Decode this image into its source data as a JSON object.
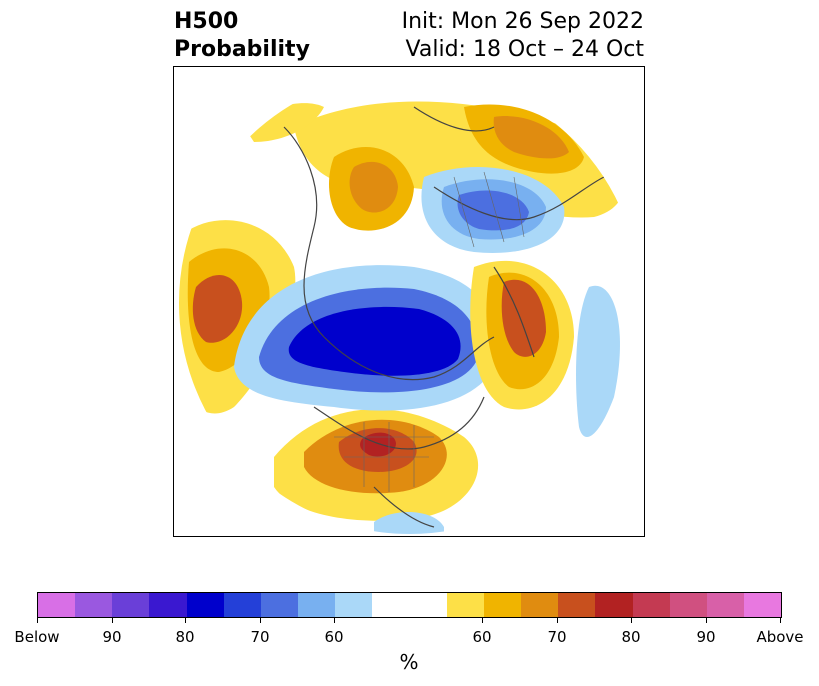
{
  "header": {
    "title_line1": "H500",
    "title_line2": "Probability",
    "init_text": "Init: Mon 26 Sep 2022",
    "valid_text": "Valid: 18 Oct – 24 Oct"
  },
  "map": {
    "projection": "north-polar-stereographic",
    "description_colors": {
      "below_high": "#0000cc",
      "below_mid": "#4c6fe0",
      "below_low": "#aad8f8",
      "above_low": "#fde047",
      "above_mid": "#f0b400",
      "above_high": "#c8501e",
      "above_max": "#b22222"
    }
  },
  "colorbar": {
    "swatches": [
      "#d86fe6",
      "#9a58e0",
      "#6a3fd8",
      "#3a18d0",
      "#0000cc",
      "#2440d8",
      "#4c6fe0",
      "#78b0f0",
      "#aad8f8",
      "#ffffff",
      "#ffffff",
      "#fde047",
      "#f0b400",
      "#e08c10",
      "#c8501e",
      "#b22222",
      "#c43a52",
      "#d05080",
      "#d860a8",
      "#e878e0"
    ],
    "ticks": [
      {
        "label": "Below"
      },
      {
        "label": "90"
      },
      {
        "label": "80"
      },
      {
        "label": "70"
      },
      {
        "label": "60"
      },
      {
        "label": "60"
      },
      {
        "label": "70"
      },
      {
        "label": "80"
      },
      {
        "label": "90"
      },
      {
        "label": "Above"
      }
    ],
    "unit_label": "%"
  }
}
